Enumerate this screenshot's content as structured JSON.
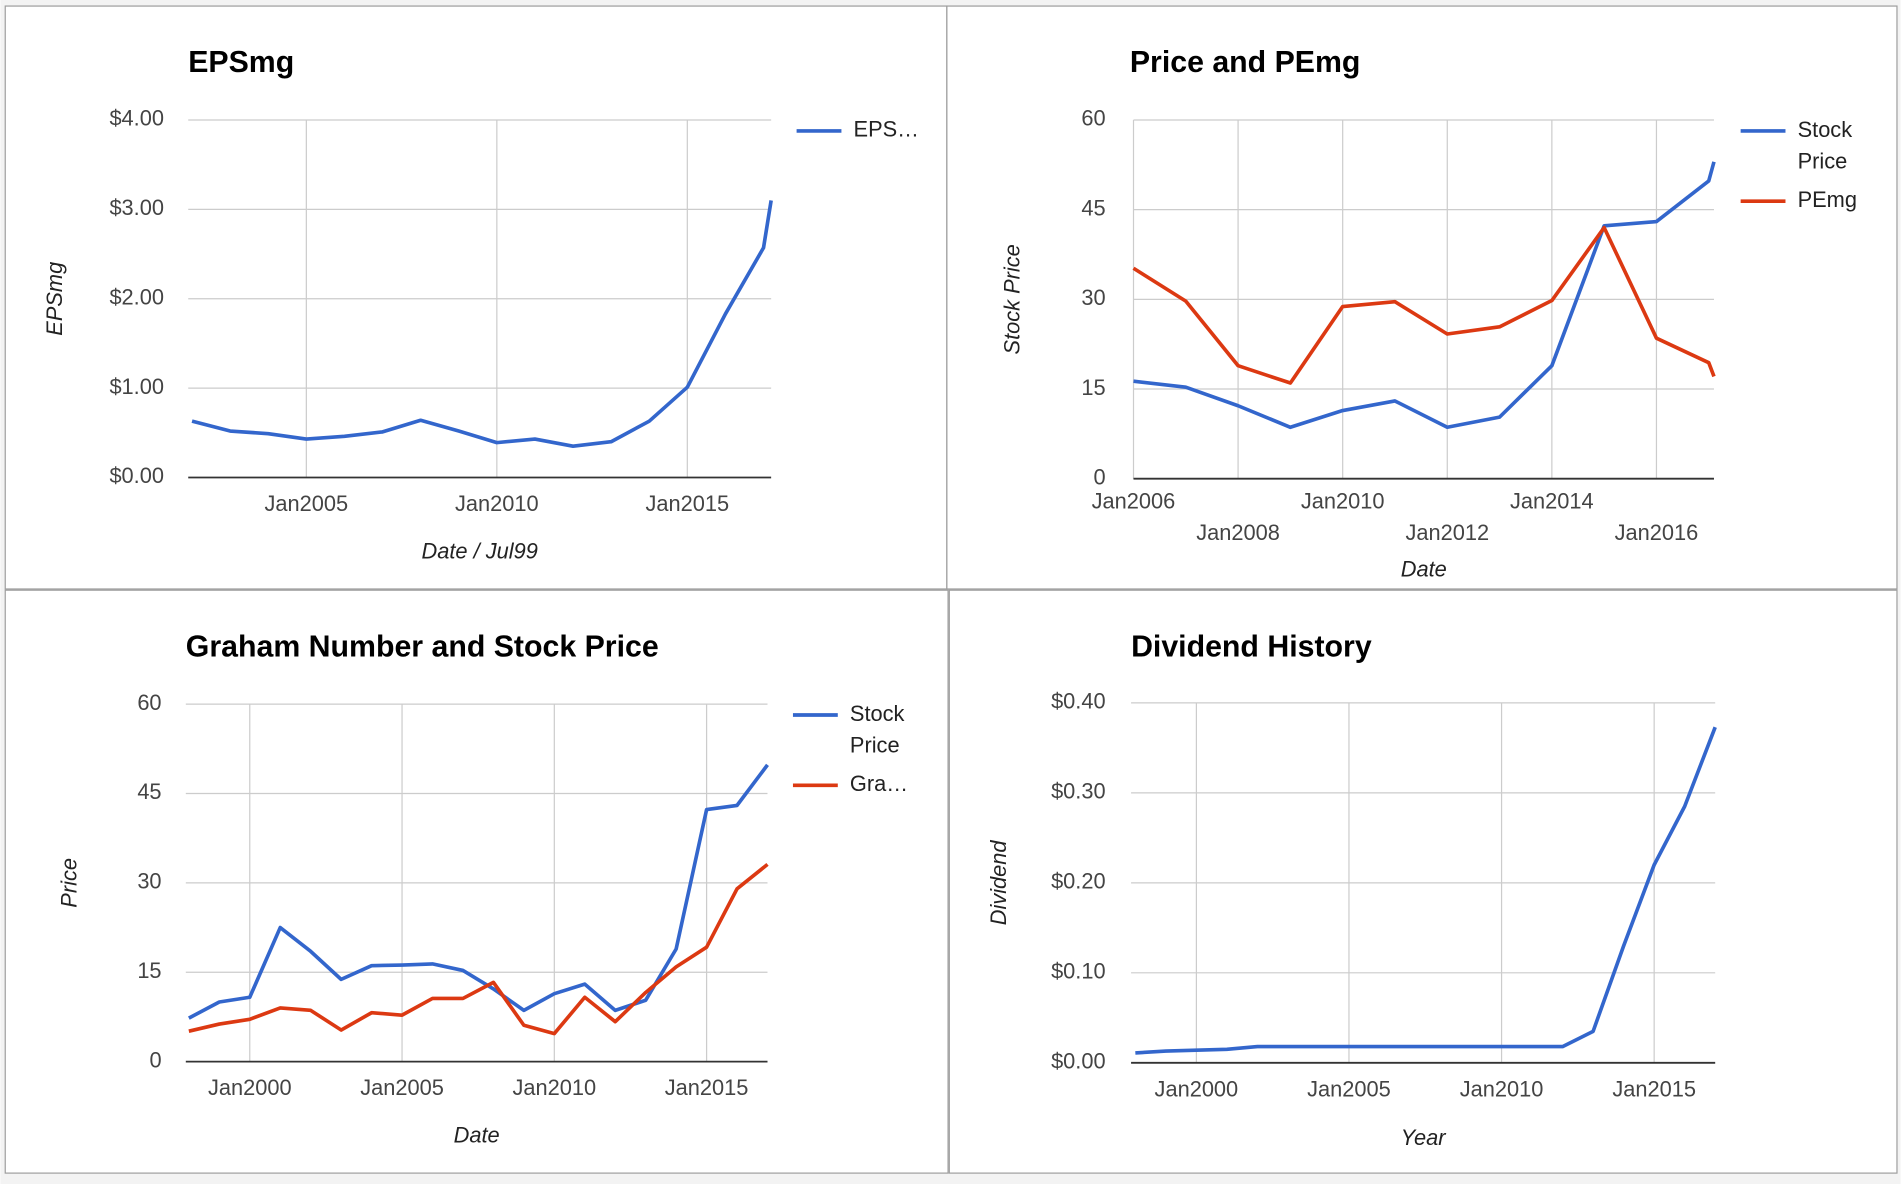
{
  "chart_data": [
    {
      "type": "line",
      "title": "EPSmg",
      "x_label": "Date / Jul99",
      "y_label": "EPSmg",
      "x": [
        2002,
        2003,
        2004,
        2005,
        2006,
        2007,
        2008,
        2009,
        2010,
        2011,
        2012,
        2013,
        2014,
        2015,
        2016,
        2017,
        2017.2
      ],
      "series": [
        {
          "name": "EPS…",
          "color": "#3366cc",
          "values": [
            0.63,
            0.52,
            0.49,
            0.43,
            0.46,
            0.51,
            0.64,
            0.52,
            0.39,
            0.43,
            0.35,
            0.4,
            0.63,
            1.01,
            1.83,
            2.57,
            3.1
          ]
        }
      ],
      "xlim": [
        2001.9,
        2017.2
      ],
      "xticks": [
        {
          "value": 2005,
          "label": "Jan2005"
        },
        {
          "value": 2010,
          "label": "Jan2010"
        },
        {
          "value": 2015,
          "label": "Jan2015"
        }
      ],
      "ylim": [
        0,
        4
      ],
      "yticks": [
        {
          "value": 0,
          "label": "$0.00"
        },
        {
          "value": 1,
          "label": "$1.00"
        },
        {
          "value": 2,
          "label": "$2.00"
        },
        {
          "value": 3,
          "label": "$3.00"
        },
        {
          "value": 4,
          "label": "$4.00"
        }
      ],
      "grid": true,
      "legend": "right"
    },
    {
      "type": "line",
      "title": "Price and PEmg",
      "x_label": "Date",
      "y_label": "Stock Price",
      "x": [
        2006,
        2007,
        2008,
        2009,
        2010,
        2011,
        2012,
        2013,
        2014,
        2015,
        2016,
        2017,
        2017.1
      ],
      "series": [
        {
          "name": "Stock Price",
          "color": "#3366cc",
          "values": [
            16.3,
            15.3,
            12.2,
            8.6,
            11.4,
            13.0,
            8.6,
            10.3,
            18.9,
            42.3,
            43.0,
            49.8,
            53.0
          ]
        },
        {
          "name": "PEmg",
          "color": "#dc3912",
          "values": [
            35.2,
            29.7,
            18.9,
            16.0,
            28.8,
            29.6,
            24.2,
            25.4,
            29.8,
            42.0,
            23.5,
            19.4,
            17.1
          ]
        }
      ],
      "xlim": [
        2006,
        2017.1
      ],
      "xticks": [
        {
          "value": 2006,
          "label": "Jan2006"
        },
        {
          "value": 2008,
          "label": "Jan2008"
        },
        {
          "value": 2010,
          "label": "Jan2010"
        },
        {
          "value": 2012,
          "label": "Jan2012"
        },
        {
          "value": 2014,
          "label": "Jan2014"
        },
        {
          "value": 2016,
          "label": "Jan2016"
        }
      ],
      "ylim": [
        0,
        60
      ],
      "yticks": [
        0,
        15,
        30,
        45,
        60
      ],
      "grid": true,
      "legend": "right"
    },
    {
      "type": "line",
      "title": "Graham Number and Stock Price",
      "x_label": "Date",
      "y_label": "Price",
      "x": [
        1998,
        1999,
        2000,
        2001,
        2002,
        2003,
        2004,
        2005,
        2006,
        2007,
        2008,
        2009,
        2010,
        2011,
        2012,
        2013,
        2014,
        2015,
        2016,
        2017
      ],
      "series": [
        {
          "name": "Stock Price",
          "color": "#3366cc",
          "values": [
            7.3,
            10.0,
            10.8,
            22.5,
            18.5,
            13.8,
            16.1,
            16.2,
            16.4,
            15.3,
            12.2,
            8.6,
            11.4,
            13.0,
            8.6,
            10.3,
            18.9,
            42.3,
            43.0,
            49.8
          ]
        },
        {
          "name": "Gra…",
          "color": "#dc3912",
          "values": [
            5.1,
            6.3,
            7.1,
            9.0,
            8.6,
            5.3,
            8.2,
            7.8,
            10.6,
            10.6,
            13.3,
            6.1,
            4.7,
            10.8,
            6.7,
            11.6,
            15.9,
            19.2,
            29.0,
            33.1
          ]
        }
      ],
      "xlim": [
        1997.9,
        2017
      ],
      "xticks": [
        {
          "value": 2000,
          "label": "Jan2000"
        },
        {
          "value": 2005,
          "label": "Jan2005"
        },
        {
          "value": 2010,
          "label": "Jan2010"
        },
        {
          "value": 2015,
          "label": "Jan2015"
        }
      ],
      "ylim": [
        0,
        60
      ],
      "yticks": [
        0,
        15,
        30,
        45,
        60
      ],
      "grid": true,
      "legend": "right"
    },
    {
      "type": "line",
      "title": "Dividend History",
      "x_label": "Year",
      "y_label": "Dividend",
      "x": [
        1998,
        1999,
        2000,
        2001,
        2002,
        2003,
        2004,
        2005,
        2006,
        2007,
        2008,
        2009,
        2010,
        2011,
        2012,
        2013,
        2014,
        2015,
        2016,
        2017
      ],
      "series": [
        {
          "color": "#3366cc",
          "values": [
            0.011,
            0.013,
            0.014,
            0.015,
            0.018,
            0.018,
            0.018,
            0.018,
            0.018,
            0.018,
            0.018,
            0.018,
            0.018,
            0.018,
            0.018,
            0.035,
            0.13,
            0.22,
            0.285,
            0.373
          ]
        }
      ],
      "xlim": [
        1997.86,
        2017
      ],
      "xticks": [
        {
          "value": 2000,
          "label": "Jan2000"
        },
        {
          "value": 2005,
          "label": "Jan2005"
        },
        {
          "value": 2010,
          "label": "Jan2010"
        },
        {
          "value": 2015,
          "label": "Jan2015"
        }
      ],
      "ylim": [
        0,
        0.4
      ],
      "yticks": [
        {
          "value": 0,
          "label": "$0.00"
        },
        {
          "value": 0.1,
          "label": "$0.10"
        },
        {
          "value": 0.2,
          "label": "$0.20"
        },
        {
          "value": 0.3,
          "label": "$0.30"
        },
        {
          "value": 0.4,
          "label": "$0.40"
        }
      ],
      "grid": true,
      "legend": "none"
    }
  ]
}
